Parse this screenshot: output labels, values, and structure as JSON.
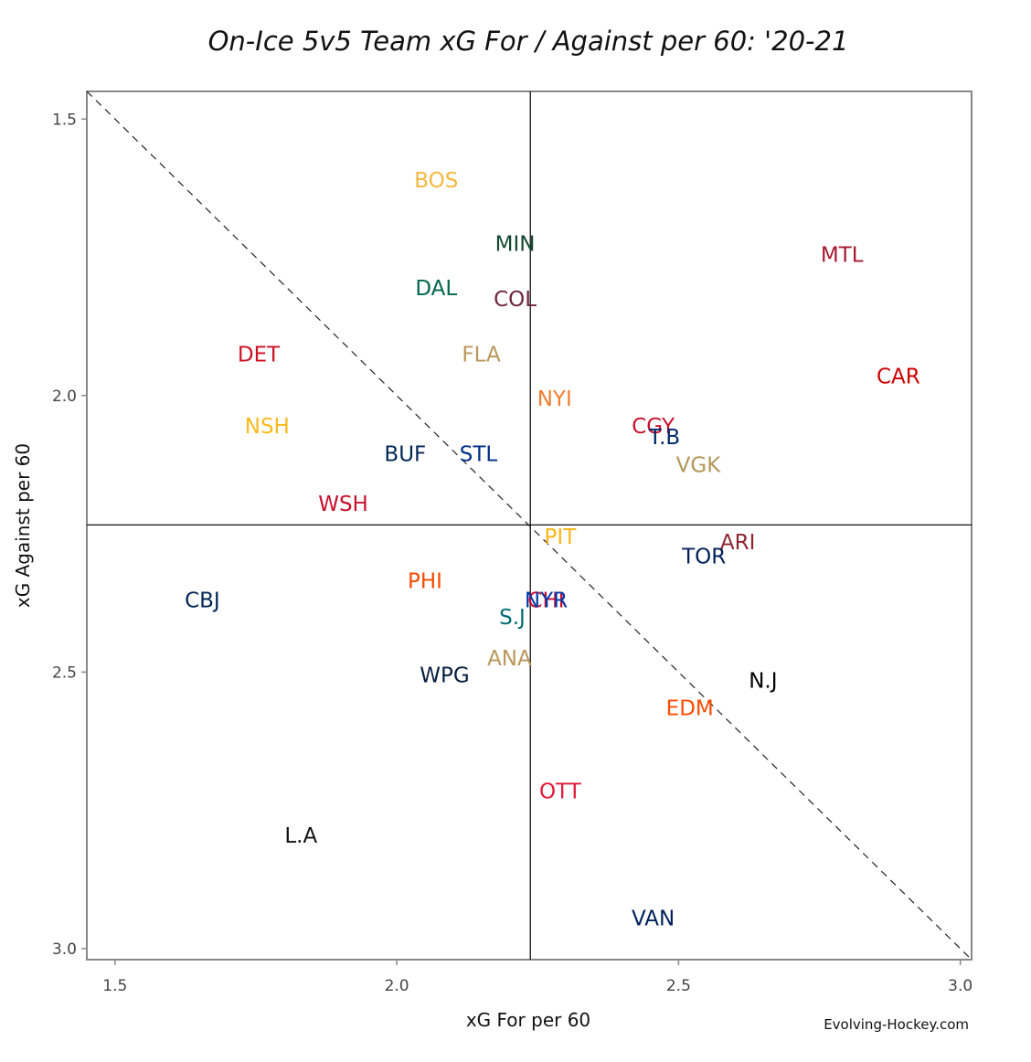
{
  "chart_data": {
    "type": "scatter",
    "title": "On-Ice 5v5 Team xG For / Against per 60: '20-21",
    "xlabel": "xG For per 60",
    "ylabel": "xG Against per 60",
    "xlim": [
      1.45,
      3.02
    ],
    "ylim": [
      1.45,
      3.02
    ],
    "y_reversed": true,
    "xticks": [
      1.5,
      2.0,
      2.5,
      3.0
    ],
    "yticks": [
      1.5,
      2.0,
      2.5,
      3.0
    ],
    "xtick_labels": [
      "1.5",
      "2.0",
      "2.5",
      "3.0"
    ],
    "ytick_labels": [
      "1.5",
      "2.0",
      "2.5",
      "3.0"
    ],
    "reference_lines": {
      "x_mean": 2.237,
      "y_mean": 2.234,
      "diagonal": "y = x"
    },
    "grid": false,
    "credit": "Evolving-Hockey.com",
    "points": [
      {
        "label": "BOS",
        "x": 2.07,
        "y": 1.61,
        "color": "#F4B942"
      },
      {
        "label": "MIN",
        "x": 2.21,
        "y": 1.725,
        "color": "#154734"
      },
      {
        "label": "MTL",
        "x": 2.79,
        "y": 1.745,
        "color": "#A6192E"
      },
      {
        "label": "DAL",
        "x": 2.07,
        "y": 1.805,
        "color": "#006847"
      },
      {
        "label": "COL",
        "x": 2.21,
        "y": 1.825,
        "color": "#6F263D"
      },
      {
        "label": "DET",
        "x": 1.755,
        "y": 1.925,
        "color": "#CE1126"
      },
      {
        "label": "FLA",
        "x": 2.15,
        "y": 1.925,
        "color": "#B9975B"
      },
      {
        "label": "CAR",
        "x": 2.89,
        "y": 1.965,
        "color": "#CC0000"
      },
      {
        "label": "NYI",
        "x": 2.28,
        "y": 2.005,
        "color": "#F47D30"
      },
      {
        "label": "NSH",
        "x": 1.77,
        "y": 2.055,
        "color": "#FFB81C"
      },
      {
        "label": "CGY",
        "x": 2.455,
        "y": 2.055,
        "color": "#C8102E"
      },
      {
        "label": "T.B",
        "x": 2.475,
        "y": 2.075,
        "color": "#002868"
      },
      {
        "label": "BUF",
        "x": 2.015,
        "y": 2.105,
        "color": "#002654"
      },
      {
        "label": "STL",
        "x": 2.145,
        "y": 2.105,
        "color": "#002F87"
      },
      {
        "label": "VGK",
        "x": 2.535,
        "y": 2.125,
        "color": "#B4975A"
      },
      {
        "label": "WSH",
        "x": 1.905,
        "y": 2.195,
        "color": "#C8102E"
      },
      {
        "label": "PIT",
        "x": 2.29,
        "y": 2.255,
        "color": "#FCB514"
      },
      {
        "label": "ARI",
        "x": 2.605,
        "y": 2.265,
        "color": "#8C2633"
      },
      {
        "label": "TOR",
        "x": 2.545,
        "y": 2.29,
        "color": "#00205B"
      },
      {
        "label": "PHI",
        "x": 2.05,
        "y": 2.335,
        "color": "#F74902"
      },
      {
        "label": "CBJ",
        "x": 1.655,
        "y": 2.37,
        "color": "#002654"
      },
      {
        "label": "CHI",
        "x": 2.265,
        "y": 2.37,
        "color": "#CF0A2C"
      },
      {
        "label": "NYR",
        "x": 2.265,
        "y": 2.37,
        "color": "#0038A8"
      },
      {
        "label": "S.J",
        "x": 2.205,
        "y": 2.4,
        "color": "#006D75"
      },
      {
        "label": "ANA",
        "x": 2.2,
        "y": 2.475,
        "color": "#B9975B"
      },
      {
        "label": "WPG",
        "x": 2.085,
        "y": 2.505,
        "color": "#041E42"
      },
      {
        "label": "N.J",
        "x": 2.65,
        "y": 2.515,
        "color": "#000000"
      },
      {
        "label": "EDM",
        "x": 2.52,
        "y": 2.565,
        "color": "#FF4C00"
      },
      {
        "label": "OTT",
        "x": 2.29,
        "y": 2.715,
        "color": "#E31837"
      },
      {
        "label": "L.A",
        "x": 1.83,
        "y": 2.795,
        "color": "#111111"
      },
      {
        "label": "VAN",
        "x": 2.455,
        "y": 2.945,
        "color": "#00205B"
      }
    ]
  }
}
